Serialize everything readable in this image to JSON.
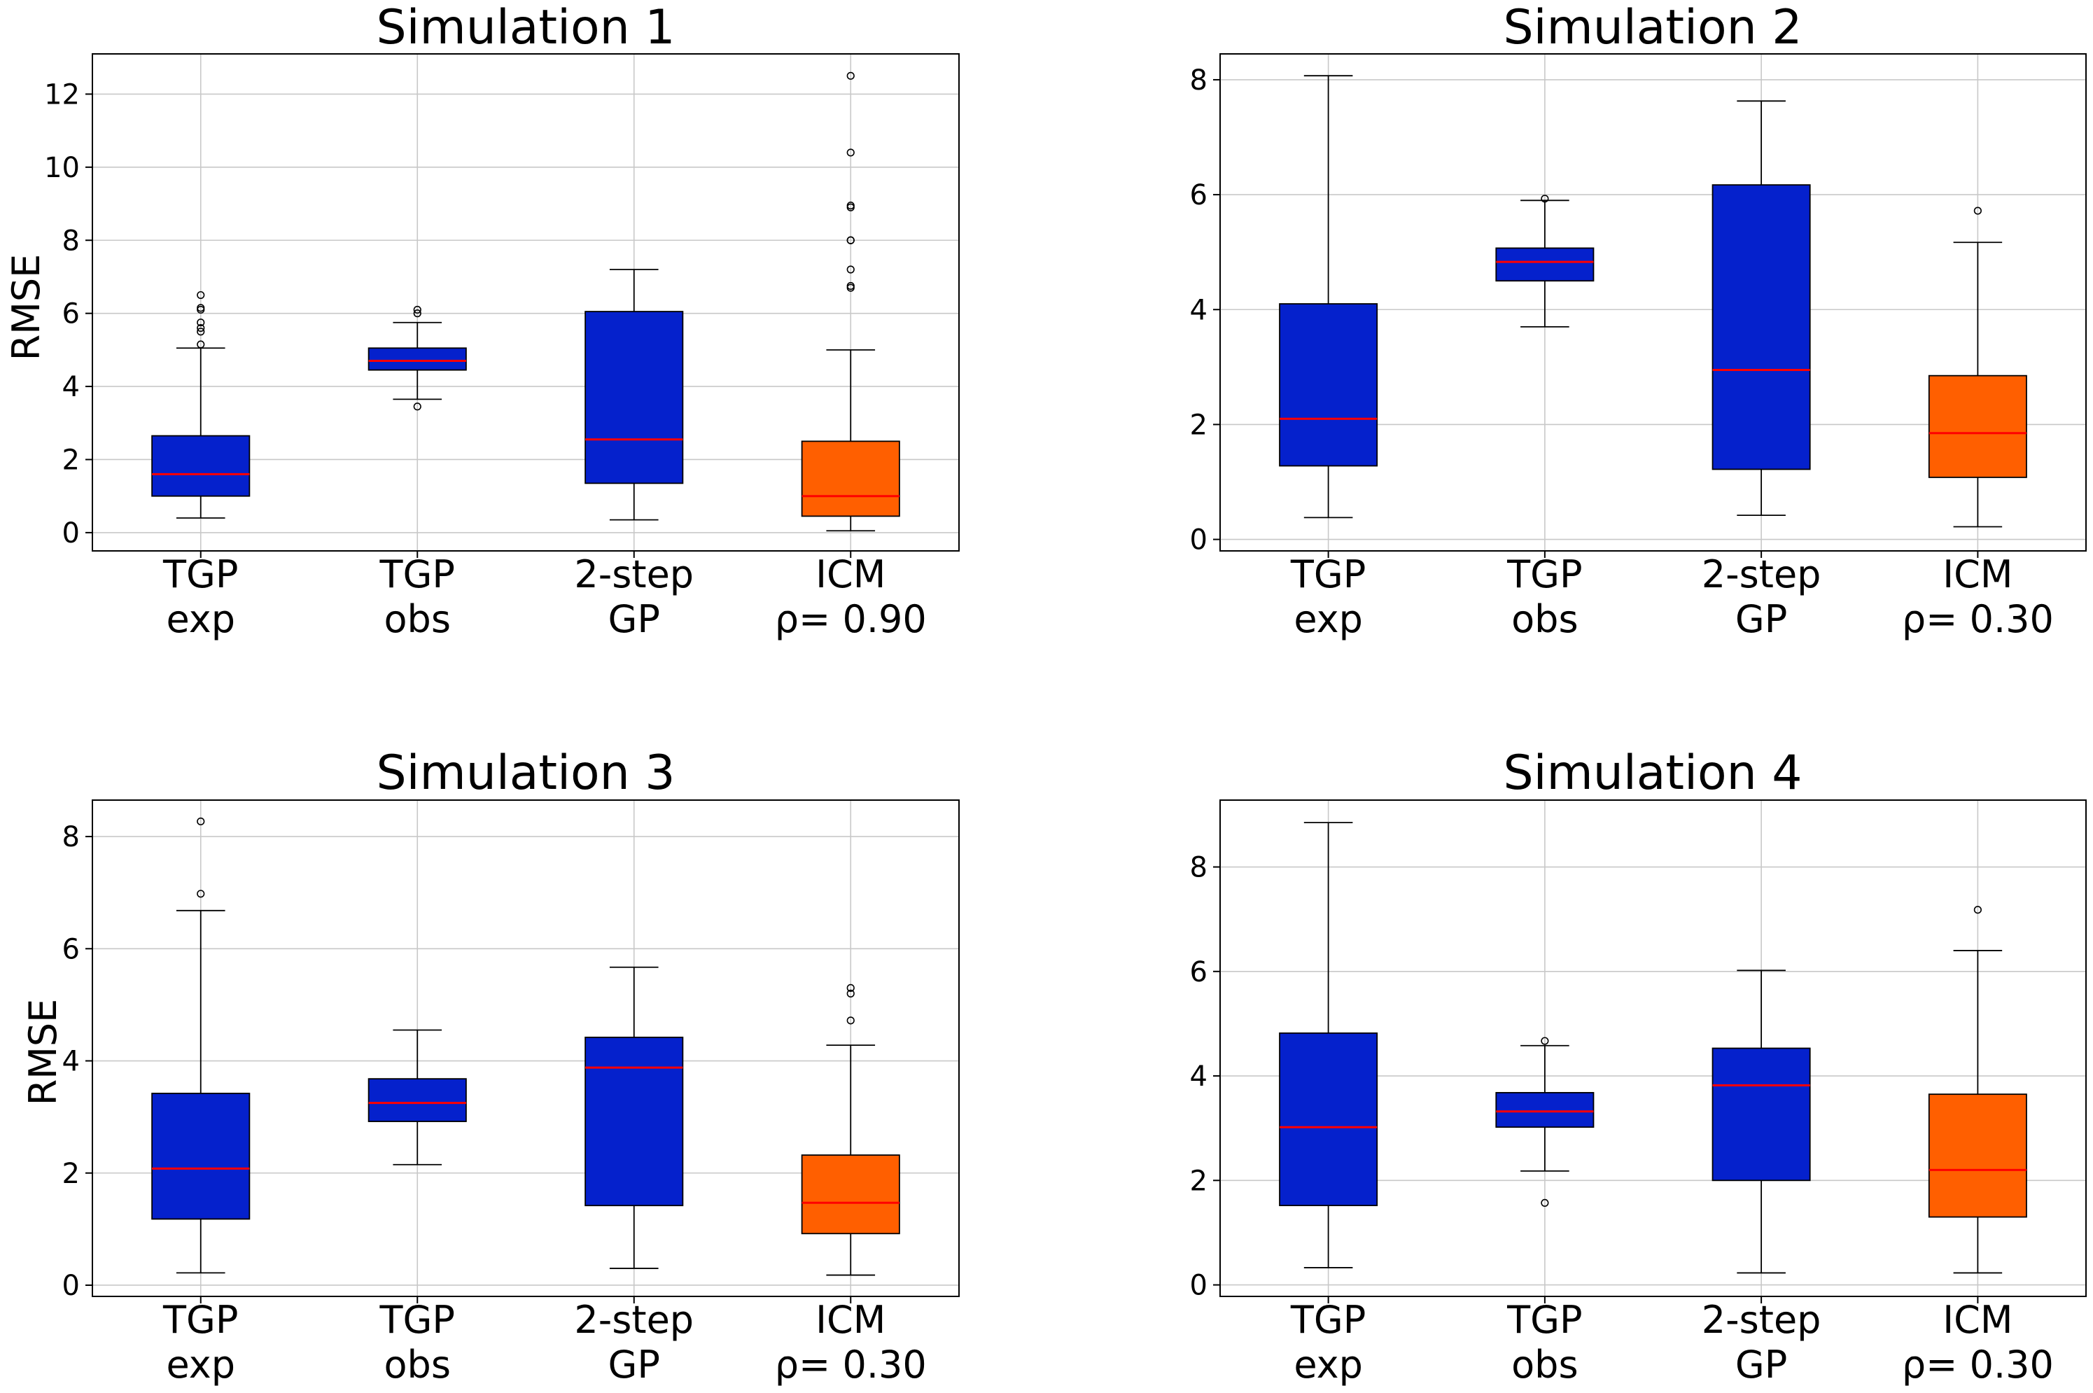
{
  "colors": {
    "box_blue": "#0521cc",
    "box_orange": "#ff5f00",
    "median": "#ff0000",
    "grid": "#c8c8c8",
    "axis": "#000000"
  },
  "chart_data": [
    {
      "type": "boxplot",
      "title": "Simulation 1",
      "ylabel": "RMSE",
      "ylim": [
        -0.5,
        13.1
      ],
      "yticks": [
        0,
        2,
        4,
        6,
        8,
        10,
        12
      ],
      "grid": true,
      "categories": [
        {
          "line1": "TGP",
          "line2": "exp"
        },
        {
          "line1": "TGP",
          "line2": "obs"
        },
        {
          "line1": "2-step",
          "line2": "GP"
        },
        {
          "line1": "ICM",
          "line2": "ρ= 0.90"
        }
      ],
      "boxes": [
        {
          "whislo": 0.4,
          "q1": 1.0,
          "med": 1.6,
          "q3": 2.65,
          "whishi": 5.05,
          "fliers": [
            5.15,
            5.5,
            5.6,
            5.75,
            6.1,
            6.15,
            6.5
          ],
          "color": "blue"
        },
        {
          "whislo": 3.65,
          "q1": 4.45,
          "med": 4.7,
          "q3": 5.05,
          "whishi": 5.75,
          "fliers": [
            3.45,
            6.0,
            6.1
          ],
          "color": "blue"
        },
        {
          "whislo": 0.35,
          "q1": 1.35,
          "med": 2.55,
          "q3": 6.05,
          "whishi": 7.2,
          "fliers": [],
          "color": "blue"
        },
        {
          "whislo": 0.05,
          "q1": 0.45,
          "med": 1.0,
          "q3": 2.5,
          "whishi": 5.0,
          "fliers": [
            6.7,
            6.75,
            7.2,
            8.0,
            8.0,
            8.9,
            8.95,
            10.4,
            12.5
          ],
          "color": "orange"
        }
      ]
    },
    {
      "type": "boxplot",
      "title": "Simulation 2",
      "ylabel": "",
      "ylim": [
        -0.2,
        8.45
      ],
      "yticks": [
        0,
        2,
        4,
        6,
        8
      ],
      "grid": true,
      "categories": [
        {
          "line1": "TGP",
          "line2": "exp"
        },
        {
          "line1": "TGP",
          "line2": "obs"
        },
        {
          "line1": "2-step",
          "line2": "GP"
        },
        {
          "line1": "ICM",
          "line2": "ρ= 0.30"
        }
      ],
      "boxes": [
        {
          "whislo": 0.38,
          "q1": 1.28,
          "med": 2.1,
          "q3": 4.1,
          "whishi": 8.07,
          "fliers": [],
          "color": "blue"
        },
        {
          "whislo": 3.7,
          "q1": 4.5,
          "med": 4.83,
          "q3": 5.07,
          "whishi": 5.9,
          "fliers": [
            5.93
          ],
          "color": "blue"
        },
        {
          "whislo": 0.42,
          "q1": 1.22,
          "med": 2.95,
          "q3": 6.17,
          "whishi": 7.63,
          "fliers": [],
          "color": "blue"
        },
        {
          "whislo": 0.22,
          "q1": 1.08,
          "med": 1.85,
          "q3": 2.85,
          "whishi": 5.17,
          "fliers": [
            5.72
          ],
          "color": "orange"
        }
      ]
    },
    {
      "type": "boxplot",
      "title": "Simulation 3",
      "ylabel": "RMSE",
      "ylim": [
        -0.2,
        8.65
      ],
      "yticks": [
        0,
        2,
        4,
        6,
        8
      ],
      "grid": true,
      "categories": [
        {
          "line1": "TGP",
          "line2": "exp"
        },
        {
          "line1": "TGP",
          "line2": "obs"
        },
        {
          "line1": "2-step",
          "line2": "GP"
        },
        {
          "line1": "ICM",
          "line2": "ρ= 0.30"
        }
      ],
      "boxes": [
        {
          "whislo": 0.22,
          "q1": 1.18,
          "med": 2.08,
          "q3": 3.42,
          "whishi": 6.68,
          "fliers": [
            6.98,
            8.27
          ],
          "color": "blue"
        },
        {
          "whislo": 2.15,
          "q1": 2.92,
          "med": 3.25,
          "q3": 3.68,
          "whishi": 4.55,
          "fliers": [],
          "color": "blue"
        },
        {
          "whislo": 0.3,
          "q1": 1.42,
          "med": 3.88,
          "q3": 4.42,
          "whishi": 5.67,
          "fliers": [],
          "color": "blue"
        },
        {
          "whislo": 0.18,
          "q1": 0.92,
          "med": 1.47,
          "q3": 2.32,
          "whishi": 4.28,
          "fliers": [
            4.72,
            5.2,
            5.3
          ],
          "color": "orange"
        }
      ]
    },
    {
      "type": "boxplot",
      "title": "Simulation 4",
      "ylabel": "",
      "ylim": [
        -0.22,
        9.28
      ],
      "yticks": [
        0,
        2,
        4,
        6,
        8
      ],
      "grid": true,
      "categories": [
        {
          "line1": "TGP",
          "line2": "exp"
        },
        {
          "line1": "TGP",
          "line2": "obs"
        },
        {
          "line1": "2-step",
          "line2": "GP"
        },
        {
          "line1": "ICM",
          "line2": "ρ= 0.30"
        }
      ],
      "boxes": [
        {
          "whislo": 0.33,
          "q1": 1.52,
          "med": 3.02,
          "q3": 4.82,
          "whishi": 8.85,
          "fliers": [],
          "color": "blue"
        },
        {
          "whislo": 2.18,
          "q1": 3.02,
          "med": 3.32,
          "q3": 3.68,
          "whishi": 4.58,
          "fliers": [
            1.57,
            4.67
          ],
          "color": "blue"
        },
        {
          "whislo": 0.23,
          "q1": 2.0,
          "med": 3.82,
          "q3": 4.53,
          "whishi": 6.02,
          "fliers": [],
          "color": "blue"
        },
        {
          "whislo": 0.23,
          "q1": 1.3,
          "med": 2.2,
          "q3": 3.65,
          "whishi": 6.4,
          "fliers": [
            7.18
          ],
          "color": "orange"
        }
      ]
    }
  ]
}
